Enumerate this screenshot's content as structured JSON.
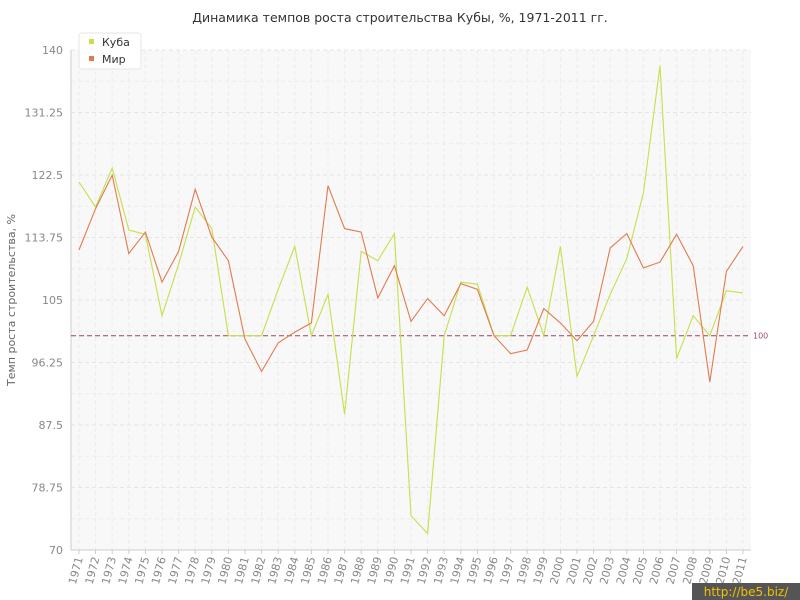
{
  "chart_data": {
    "type": "line",
    "title": "Динамика темпов роста строительства Кубы, %, 1971-2011 гг.",
    "ylabel": "Темп роста строительства, %",
    "xlabel": "",
    "ylim": [
      70,
      140
    ],
    "yticks": [
      "70",
      "78.75",
      "87.5",
      "96.25",
      "105",
      "113.75",
      "122.5",
      "131.25",
      "140"
    ],
    "x": [
      1971,
      1972,
      1973,
      1974,
      1975,
      1976,
      1977,
      1978,
      1979,
      1980,
      1981,
      1982,
      1983,
      1984,
      1985,
      1986,
      1987,
      1988,
      1989,
      1990,
      1991,
      1992,
      1993,
      1994,
      1995,
      1996,
      1997,
      1998,
      1999,
      2000,
      2001,
      2002,
      2003,
      2004,
      2005,
      2006,
      2007,
      2008,
      2009,
      2010,
      2011
    ],
    "series": [
      {
        "name": "Куба",
        "color": "#c6df4a",
        "values": [
          121.5,
          118,
          123.5,
          114.8,
          114.2,
          102.8,
          110,
          118,
          115,
          100,
          100,
          100,
          106.5,
          112.5,
          100,
          105.8,
          89,
          111.8,
          110.5,
          114.3,
          74.8,
          72.3,
          100,
          107.5,
          107.2,
          100,
          100,
          106.8,
          100,
          112.5,
          94.3,
          100,
          105.8,
          110.8,
          120,
          137.8,
          96.8,
          102.8,
          100,
          106.3,
          106
        ]
      },
      {
        "name": "Мир",
        "color": "#e07b4f",
        "values": [
          112,
          117.8,
          122.5,
          111.5,
          114.5,
          107.5,
          111.8,
          120.5,
          113.8,
          110.5,
          99.5,
          95,
          99,
          100.5,
          101.8,
          121,
          115,
          114.5,
          105.3,
          109.8,
          102,
          105.2,
          102.8,
          107.3,
          106.5,
          100,
          97.5,
          98,
          103.8,
          101.8,
          99.3,
          102,
          112.3,
          114.3,
          109.5,
          110.3,
          114.2,
          109.8,
          93.5,
          109,
          112.5
        ]
      }
    ],
    "reference_line": {
      "value": 100,
      "label": "100",
      "color": "#a0405a"
    },
    "legend": {
      "placement": "top-left"
    },
    "grid": true
  },
  "watermark": "http://be5.biz/"
}
